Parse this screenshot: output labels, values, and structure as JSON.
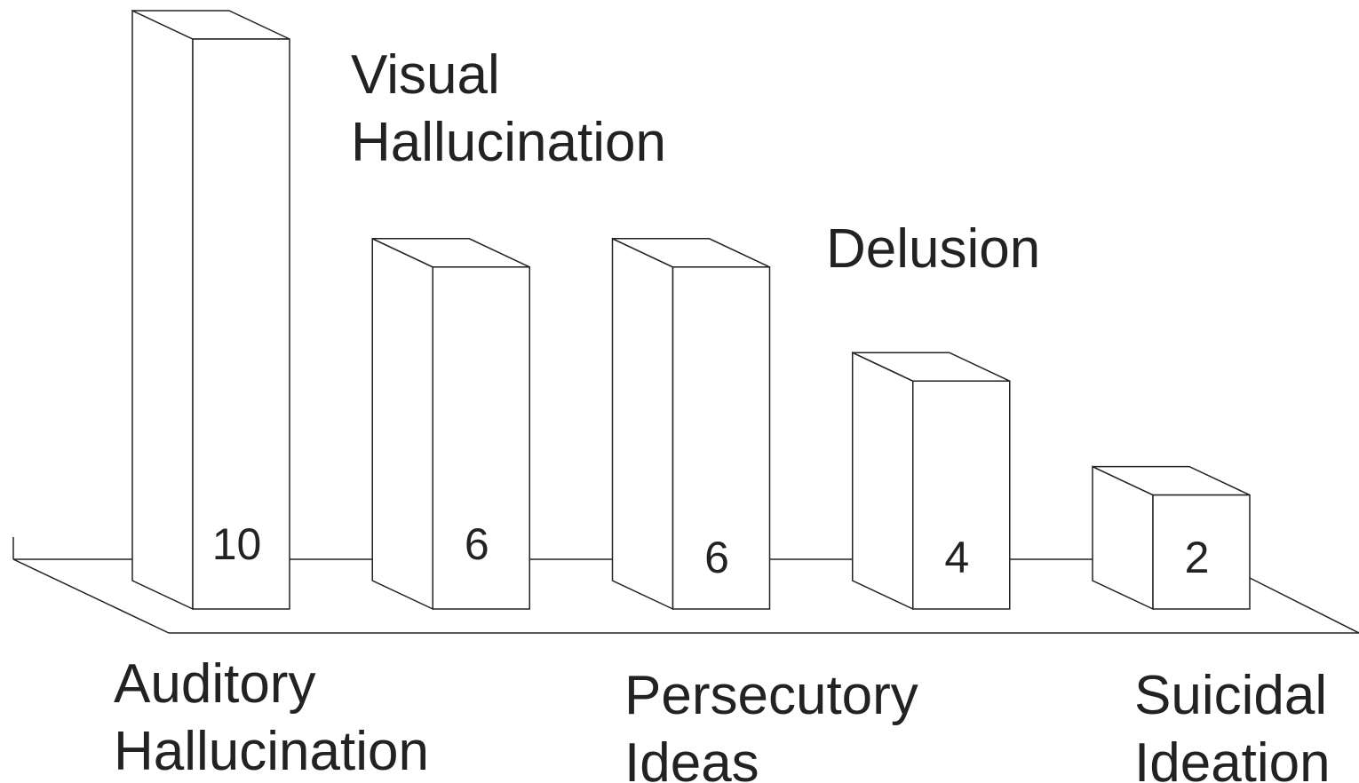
{
  "chart_data": {
    "type": "bar3d",
    "categories": [
      "Auditory Hallucination",
      "Visual Hallucination",
      "Persecutory Ideas",
      "Delusion",
      "Suicidal Ideation"
    ],
    "values": [
      10,
      6,
      6,
      4,
      2
    ],
    "color": "#ffffff"
  }
}
